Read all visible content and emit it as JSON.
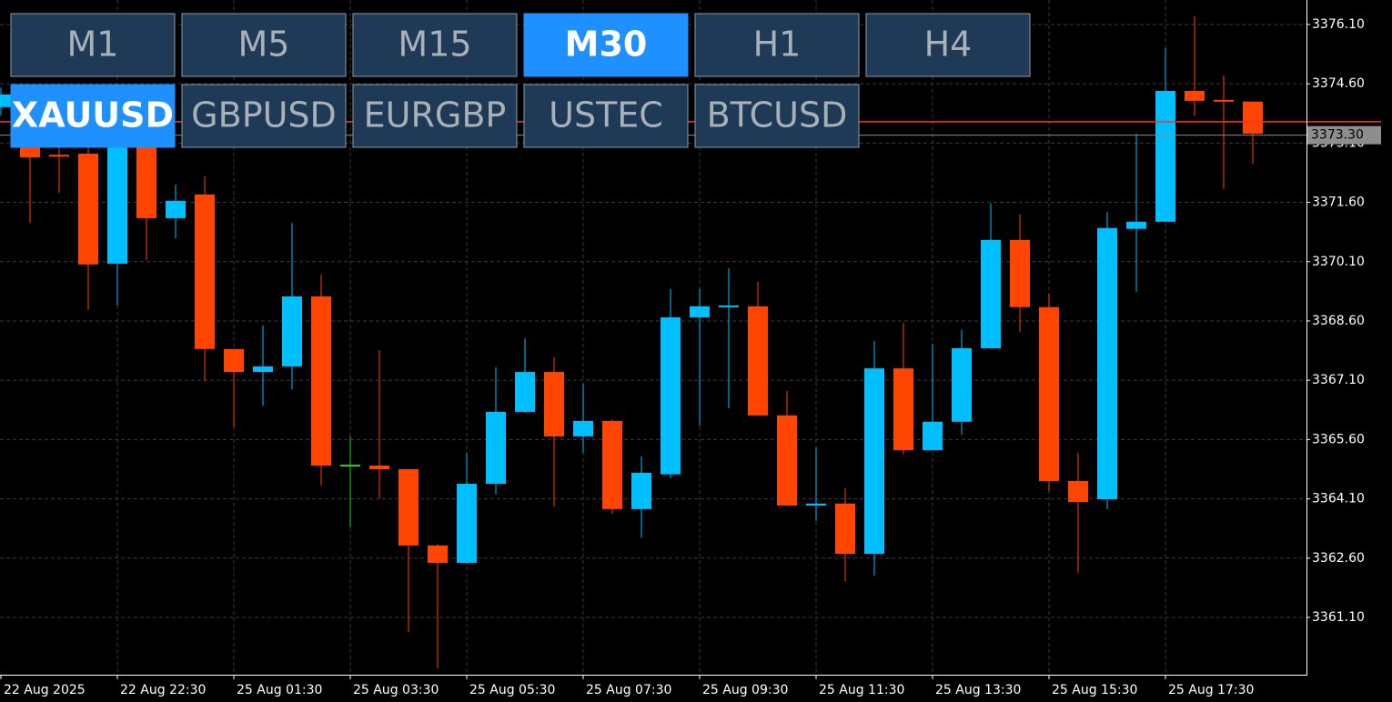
{
  "toolbar": {
    "timeframes": [
      "M1",
      "M5",
      "M15",
      "M30",
      "H1",
      "H4"
    ],
    "active_timeframe": 3,
    "symbols": [
      "XAUUSD",
      "GBPUSD",
      "EURGBP",
      "USTEC",
      "BTCUSD"
    ],
    "active_symbol": 0
  },
  "chart_data": {
    "type": "candlestick",
    "categories": [
      "22 Aug 2025",
      null,
      null,
      null,
      "22 Aug 22:30",
      null,
      null,
      null,
      "25 Aug 01:30",
      null,
      null,
      null,
      "25 Aug 03:30",
      null,
      null,
      null,
      "25 Aug 05:30",
      null,
      null,
      null,
      "25 Aug 07:30",
      null,
      null,
      null,
      "25 Aug 09:30",
      null,
      null,
      null,
      "25 Aug 11:30",
      null,
      null,
      null,
      "25 Aug 13:30",
      null,
      null,
      null,
      "25 Aug 15:30",
      null,
      null,
      null,
      "25 Aug 17:30",
      null,
      null,
      null
    ],
    "open": [
      3374.01,
      3374.01,
      3372.78,
      3372.83,
      3370.05,
      3373.2,
      3371.2,
      3371.8,
      3367.89,
      3367.31,
      3367.45,
      3369.22,
      3364.94,
      3364.94,
      3364.85,
      3362.92,
      3362.48,
      3364.48,
      3366.3,
      3367.31,
      3365.68,
      3366.07,
      3363.84,
      3364.72,
      3368.69,
      3368.96,
      3368.97,
      3366.21,
      3363.93,
      3363.98,
      3362.71,
      3367.4,
      3365.33,
      3366.05,
      3367.91,
      3370.65,
      3368.95,
      3364.55,
      3364.09,
      3370.93,
      3371.11,
      3374.42,
      3374.17,
      3374.15
    ],
    "high": [
      3374.5,
      3374.42,
      3373.15,
      3373.04,
      3373.5,
      3373.5,
      3372.05,
      3372.26,
      3367.89,
      3368.49,
      3371.08,
      3369.77,
      3365.68,
      3367.86,
      3364.85,
      3362.95,
      3365.26,
      3367.43,
      3368.16,
      3367.68,
      3367.01,
      3366.11,
      3365.17,
      3369.41,
      3369.41,
      3369.93,
      3369.59,
      3366.83,
      3365.4,
      3364.37,
      3368.09,
      3368.55,
      3368.02,
      3368.37,
      3371.57,
      3371.29,
      3369.29,
      3365.26,
      3371.36,
      3373.34,
      3375.5,
      3376.31,
      3374.81,
      3374.15
    ],
    "low": [
      3373.8,
      3371.08,
      3371.84,
      3368.88,
      3368.99,
      3370.14,
      3370.69,
      3367.08,
      3365.91,
      3366.46,
      3366.87,
      3364.44,
      3363.38,
      3364.11,
      3360.73,
      3359.81,
      3362.46,
      3364.21,
      3366.28,
      3363.91,
      3365.26,
      3363.72,
      3363.12,
      3364.62,
      3365.95,
      3366.39,
      3366.21,
      3363.93,
      3363.54,
      3362.02,
      3362.16,
      3365.22,
      3365.33,
      3365.72,
      3367.91,
      3368.32,
      3364.3,
      3362.23,
      3363.84,
      3369.34,
      3371.11,
      3373.78,
      3371.94,
      3372.58
    ],
    "close": [
      3374.33,
      3372.74,
      3372.76,
      3370.03,
      3373.27,
      3371.2,
      3371.64,
      3367.89,
      3367.31,
      3367.45,
      3369.22,
      3364.94,
      3364.94,
      3364.85,
      3362.92,
      3362.48,
      3364.48,
      3366.3,
      3367.31,
      3365.68,
      3366.07,
      3363.84,
      3364.76,
      3368.69,
      3368.97,
      3368.97,
      3366.21,
      3363.93,
      3363.98,
      3362.71,
      3367.4,
      3365.33,
      3366.05,
      3367.91,
      3370.65,
      3368.95,
      3364.55,
      3364.02,
      3370.95,
      3371.11,
      3374.42,
      3374.17,
      3374.16,
      3373.34
    ],
    "up_color": "#00bfff",
    "down_color": "#ff4500",
    "doji_color": "#32cd32",
    "ylim": [
      3359.65,
      3376.72
    ],
    "yticks": [
      {
        "value": 3361.1,
        "label": "3361.10"
      },
      {
        "value": 3362.6,
        "label": "3362.60"
      },
      {
        "value": 3364.1,
        "label": "3364.10"
      },
      {
        "value": 3365.6,
        "label": "3365.60"
      },
      {
        "value": 3367.1,
        "label": "3367.10"
      },
      {
        "value": 3368.6,
        "label": "3368.60"
      },
      {
        "value": 3370.1,
        "label": "3370.10"
      },
      {
        "value": 3371.6,
        "label": "3371.60"
      },
      {
        "value": 3373.1,
        "label": "3373.10"
      },
      {
        "value": 3374.6,
        "label": "3374.60"
      },
      {
        "value": 3376.1,
        "label": "3376.10"
      }
    ],
    "ask_line": 3373.64,
    "bid_price": {
      "value": 3373.3,
      "label": "3373.30"
    },
    "grid": true
  }
}
